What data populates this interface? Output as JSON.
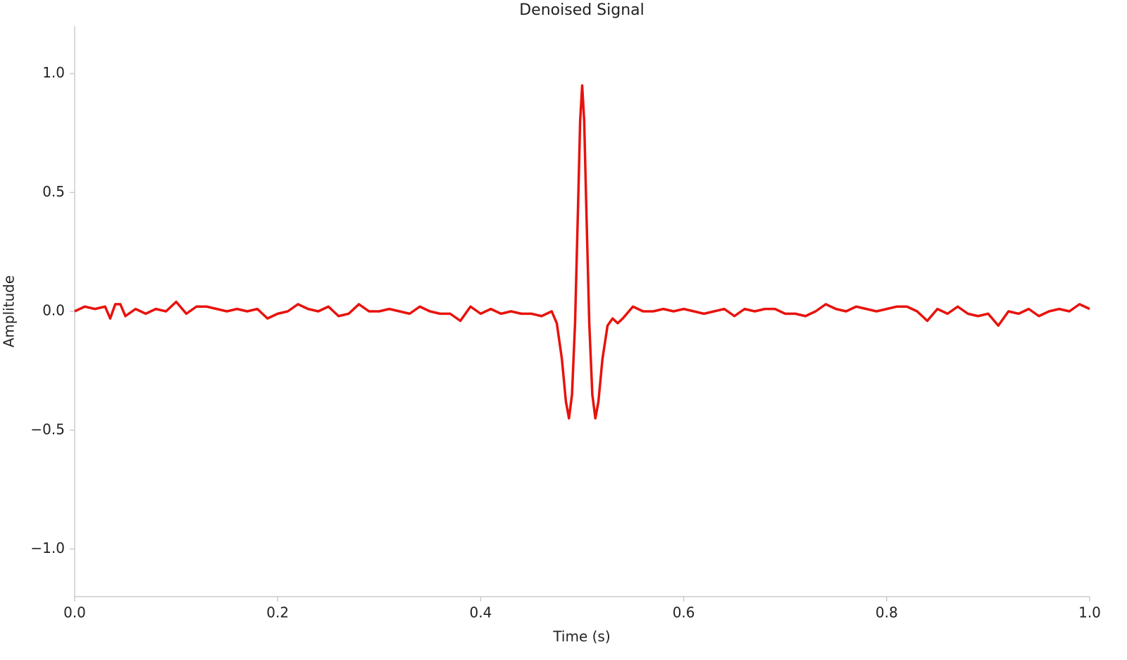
{
  "chart_data": {
    "type": "line",
    "title": "Denoised Signal",
    "x_label": "Time (s)",
    "y_label": "Amplitude",
    "x": [
      0.0,
      0.01,
      0.02,
      0.03,
      0.035,
      0.04,
      0.045,
      0.05,
      0.06,
      0.07,
      0.08,
      0.09,
      0.1,
      0.11,
      0.12,
      0.13,
      0.14,
      0.15,
      0.16,
      0.17,
      0.18,
      0.19,
      0.2,
      0.21,
      0.22,
      0.23,
      0.24,
      0.25,
      0.26,
      0.27,
      0.28,
      0.29,
      0.3,
      0.31,
      0.32,
      0.33,
      0.34,
      0.35,
      0.36,
      0.37,
      0.38,
      0.39,
      0.4,
      0.41,
      0.42,
      0.43,
      0.44,
      0.45,
      0.46,
      0.47,
      0.475,
      0.48,
      0.484,
      0.487,
      0.49,
      0.493,
      0.496,
      0.498,
      0.5,
      0.502,
      0.504,
      0.507,
      0.51,
      0.513,
      0.516,
      0.52,
      0.525,
      0.53,
      0.535,
      0.54,
      0.55,
      0.56,
      0.57,
      0.58,
      0.59,
      0.6,
      0.61,
      0.62,
      0.63,
      0.64,
      0.65,
      0.66,
      0.67,
      0.68,
      0.69,
      0.7,
      0.71,
      0.72,
      0.73,
      0.74,
      0.75,
      0.76,
      0.77,
      0.78,
      0.79,
      0.8,
      0.81,
      0.82,
      0.83,
      0.84,
      0.85,
      0.86,
      0.87,
      0.88,
      0.89,
      0.9,
      0.91,
      0.92,
      0.93,
      0.94,
      0.95,
      0.96,
      0.97,
      0.98,
      0.99,
      1.0
    ],
    "values": [
      0.0,
      0.02,
      0.01,
      0.02,
      -0.03,
      0.03,
      0.03,
      -0.02,
      0.01,
      -0.01,
      0.01,
      0.0,
      0.04,
      -0.01,
      0.02,
      0.02,
      0.01,
      0.0,
      0.01,
      0.0,
      0.01,
      -0.03,
      -0.01,
      0.0,
      0.03,
      0.01,
      0.0,
      0.02,
      -0.02,
      -0.01,
      0.03,
      0.0,
      0.0,
      0.01,
      0.0,
      -0.01,
      0.02,
      0.0,
      -0.01,
      -0.01,
      -0.04,
      0.02,
      -0.01,
      0.01,
      -0.01,
      0.0,
      -0.01,
      -0.01,
      -0.02,
      0.0,
      -0.05,
      -0.2,
      -0.38,
      -0.45,
      -0.35,
      -0.05,
      0.45,
      0.8,
      0.95,
      0.8,
      0.45,
      -0.05,
      -0.35,
      -0.45,
      -0.38,
      -0.2,
      -0.06,
      -0.03,
      -0.05,
      -0.03,
      0.02,
      0.0,
      0.0,
      0.01,
      0.0,
      0.01,
      0.0,
      -0.01,
      0.0,
      0.01,
      -0.02,
      0.01,
      0.0,
      0.01,
      0.01,
      -0.01,
      -0.01,
      -0.02,
      0.0,
      0.03,
      0.01,
      0.0,
      0.02,
      0.01,
      0.0,
      0.01,
      0.02,
      0.02,
      0.0,
      -0.04,
      0.01,
      -0.01,
      0.02,
      -0.01,
      -0.02,
      -0.01,
      -0.06,
      0.0,
      -0.01,
      0.01,
      -0.02,
      0.0,
      0.01,
      0.0,
      0.03,
      0.01
    ],
    "color": "#e8120c",
    "xlim": [
      0,
      1
    ],
    "ylim": [
      -1.2,
      1.2
    ],
    "xticks": [
      {
        "value": 0,
        "label": "0.0"
      },
      0.2,
      0.4,
      0.6,
      0.8,
      {
        "value": 1,
        "label": "1.0"
      }
    ],
    "yticks": [
      {
        "value": -1,
        "label": "−1.0"
      },
      {
        "value": -0.5,
        "label": "−0.5"
      },
      {
        "value": 0,
        "label": "0.0"
      },
      0.5,
      {
        "value": 1,
        "label": "1.0"
      }
    ]
  }
}
